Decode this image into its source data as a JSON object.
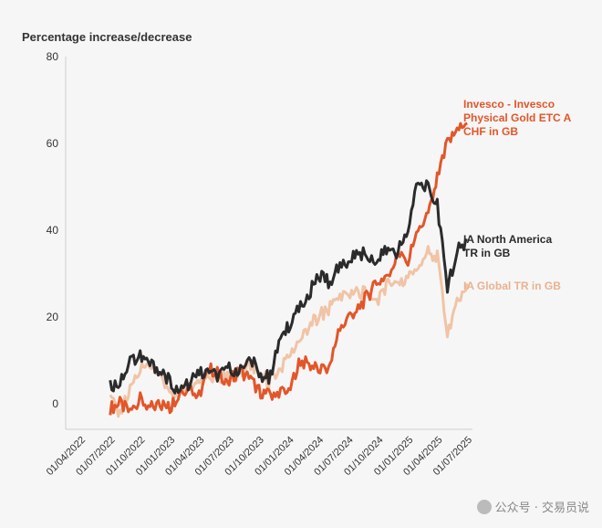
{
  "chart_data": {
    "type": "line",
    "title": "Percentage increase/decrease",
    "xlabel": "",
    "ylabel": "",
    "ylim": [
      -3,
      80
    ],
    "yticks": [
      0,
      20,
      40,
      60,
      80
    ],
    "xticks": [
      "01/04/2022",
      "01/07/2022",
      "01/10/2022",
      "01/01/2023",
      "01/04/2023",
      "01/07/2023",
      "01/10/2023",
      "01/01/2024",
      "01/04/2024",
      "01/07/2024",
      "01/10/2024",
      "01/01/2025",
      "01/04/2025",
      "01/07/2025"
    ],
    "grid": false,
    "legend": "right-of-lines",
    "x": [
      "2022-06",
      "2022-07",
      "2022-08",
      "2022-09",
      "2022-10",
      "2022-11",
      "2022-12",
      "2023-01",
      "2023-02",
      "2023-03",
      "2023-04",
      "2023-05",
      "2023-06",
      "2023-07",
      "2023-08",
      "2023-09",
      "2023-10",
      "2023-11",
      "2023-12",
      "2024-01",
      "2024-02",
      "2024-03",
      "2024-04",
      "2024-05",
      "2024-06",
      "2024-07",
      "2024-08",
      "2024-09",
      "2024-10",
      "2024-11",
      "2024-12",
      "2025-01",
      "2025-02",
      "2025-03",
      "2025-04",
      "2025-05",
      "2025-06"
    ],
    "series": [
      {
        "name": "Invesco - Invesco Physical Gold ETC A CHF in GB",
        "color": "#e2562a",
        "values": [
          -1,
          0,
          -2,
          1,
          -1,
          0,
          -1,
          3,
          4,
          2,
          8,
          7,
          5,
          8,
          6,
          3,
          2,
          3,
          2,
          10,
          9,
          8,
          8,
          16,
          20,
          22,
          25,
          28,
          30,
          34,
          33,
          40,
          43,
          52,
          60,
          63,
          65
        ]
      },
      {
        "name": "IA North America TR in GB",
        "color": "#2b2b2b",
        "values": [
          4,
          5,
          10,
          11,
          9,
          8,
          5,
          3,
          5,
          7,
          7,
          6,
          8,
          8,
          11,
          7,
          6,
          13,
          18,
          22,
          25,
          30,
          28,
          31,
          33,
          35,
          34,
          33,
          36,
          35,
          40,
          52,
          50,
          46,
          27,
          35,
          38
        ]
      },
      {
        "name": "IA Global TR in GB",
        "color": "#f0c4a6",
        "values": [
          1,
          -2,
          3,
          8,
          9,
          6,
          3,
          2,
          4,
          5,
          6,
          6,
          6,
          7,
          9,
          8,
          5,
          8,
          10,
          14,
          18,
          20,
          22,
          24,
          25,
          26,
          25,
          24,
          28,
          27,
          29,
          32,
          35,
          34,
          16,
          23,
          28
        ]
      }
    ]
  },
  "watermark": "公众号 · 交易员说"
}
